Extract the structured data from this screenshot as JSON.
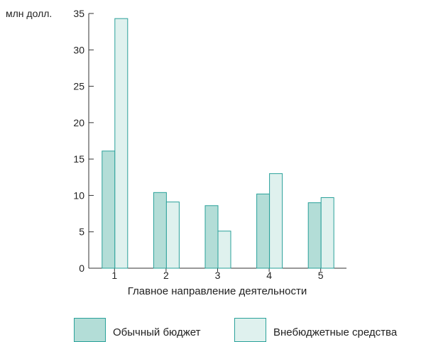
{
  "chart_data": {
    "type": "bar",
    "ylabel": "млн долл.",
    "xlabel": "Главное направление деятельности",
    "categories": [
      "1",
      "2",
      "3",
      "4",
      "5"
    ],
    "ylim": [
      0,
      35
    ],
    "yticks": [
      0,
      5,
      10,
      15,
      20,
      25,
      30,
      35
    ],
    "grid": false,
    "legend_position": "bottom",
    "series": [
      {
        "name": "Обычный бюджет",
        "color": "#b3ddd7",
        "values": [
          16.1,
          10.4,
          8.6,
          10.2,
          9.0
        ]
      },
      {
        "name": "Внебюджетные средства",
        "color": "#dff1ee",
        "values": [
          34.3,
          9.1,
          5.1,
          13.0,
          9.7
        ]
      }
    ],
    "stroke_color": "#2aa19a"
  }
}
